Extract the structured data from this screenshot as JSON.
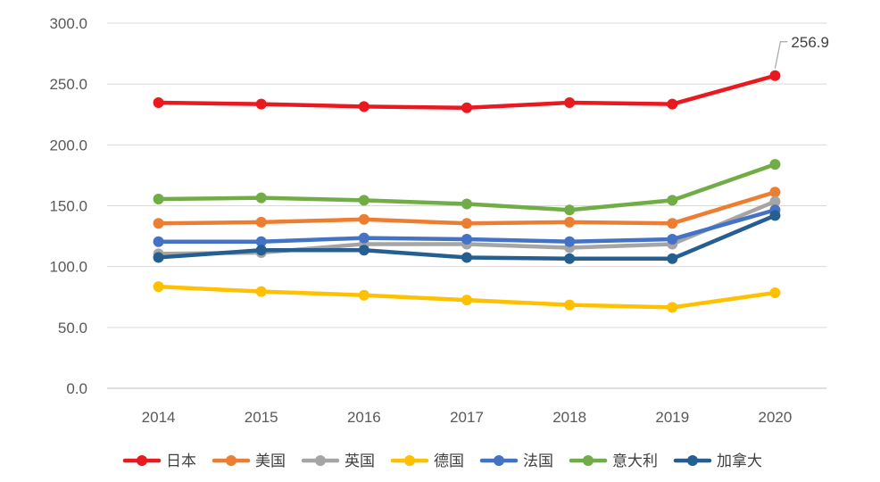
{
  "chart_data": {
    "type": "line",
    "title": "",
    "xlabel": "",
    "ylabel": "",
    "categories": [
      "2014",
      "2015",
      "2016",
      "2017",
      "2018",
      "2019",
      "2020"
    ],
    "ylim": [
      0,
      300
    ],
    "yticks": [
      "0.0",
      "50.0",
      "100.0",
      "150.0",
      "200.0",
      "250.0",
      "300.0"
    ],
    "grid": true,
    "legend_position": "bottom",
    "series": [
      {
        "name": "日本",
        "color": "#e8191f",
        "values": [
          234.7,
          233.5,
          231.5,
          230.5,
          234.7,
          233.5,
          256.9
        ]
      },
      {
        "name": "美国",
        "color": "#ed7d31",
        "values": [
          135.5,
          136.5,
          138.8,
          135.5,
          136.5,
          135.5,
          161.2
        ]
      },
      {
        "name": "英国",
        "color": "#a5a5a5",
        "values": [
          110.5,
          111.5,
          118.5,
          118.5,
          115.5,
          118.5,
          153.5
        ]
      },
      {
        "name": "德国",
        "color": "#ffc000",
        "values": [
          83.5,
          79.5,
          76.5,
          72.5,
          68.5,
          66.5,
          78.5
        ]
      },
      {
        "name": "法国",
        "color": "#4472c4",
        "values": [
          120.5,
          120.5,
          123.5,
          122.5,
          120.5,
          122.5,
          146.5
        ]
      },
      {
        "name": "意大利",
        "color": "#70ad47",
        "values": [
          155.5,
          156.5,
          154.5,
          151.5,
          146.5,
          154.5,
          184.0
        ]
      },
      {
        "name": "加拿大",
        "color": "#255e91",
        "values": [
          107.5,
          113.5,
          113.5,
          107.5,
          106.5,
          106.5,
          142.0
        ]
      }
    ],
    "annotations": [
      {
        "series": "日本",
        "category": "2020",
        "text": "256.9"
      }
    ]
  }
}
